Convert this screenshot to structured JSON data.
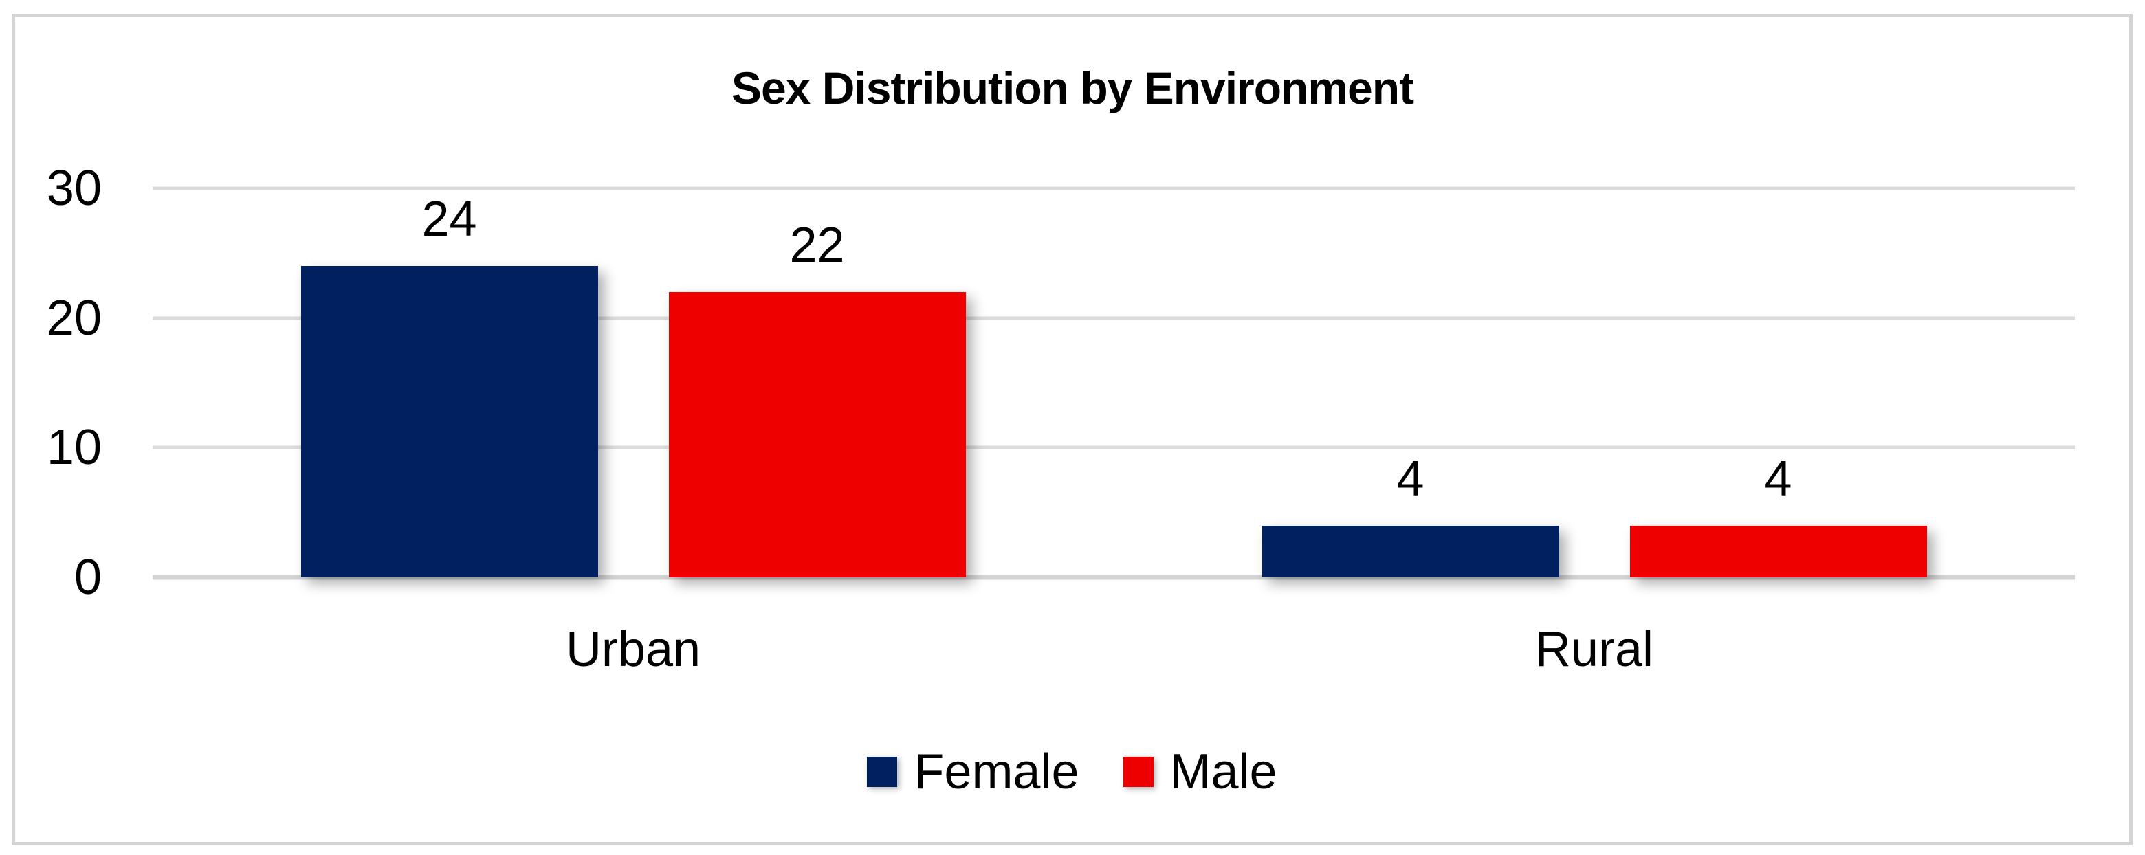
{
  "chart_data": {
    "type": "bar",
    "title": "Sex Distribution by Environment",
    "categories": [
      "Urban",
      "Rural"
    ],
    "series": [
      {
        "name": "Female",
        "color": "#002060",
        "values": [
          24,
          4
        ]
      },
      {
        "name": "Male",
        "color": "#EE0000",
        "values": [
          22,
          4
        ]
      }
    ],
    "ylim": [
      0,
      30
    ],
    "yticks": [
      0,
      10,
      20,
      30
    ],
    "grid": true,
    "legend_position": "bottom",
    "data_labels_shown": true
  },
  "styles": {
    "gridline_color": "#DBDBDB",
    "axis_line_color": "#D4D4D4",
    "frame_border_color": "#D4D4D4",
    "text_color": "#000000",
    "background_color": "#FFFFFF"
  }
}
